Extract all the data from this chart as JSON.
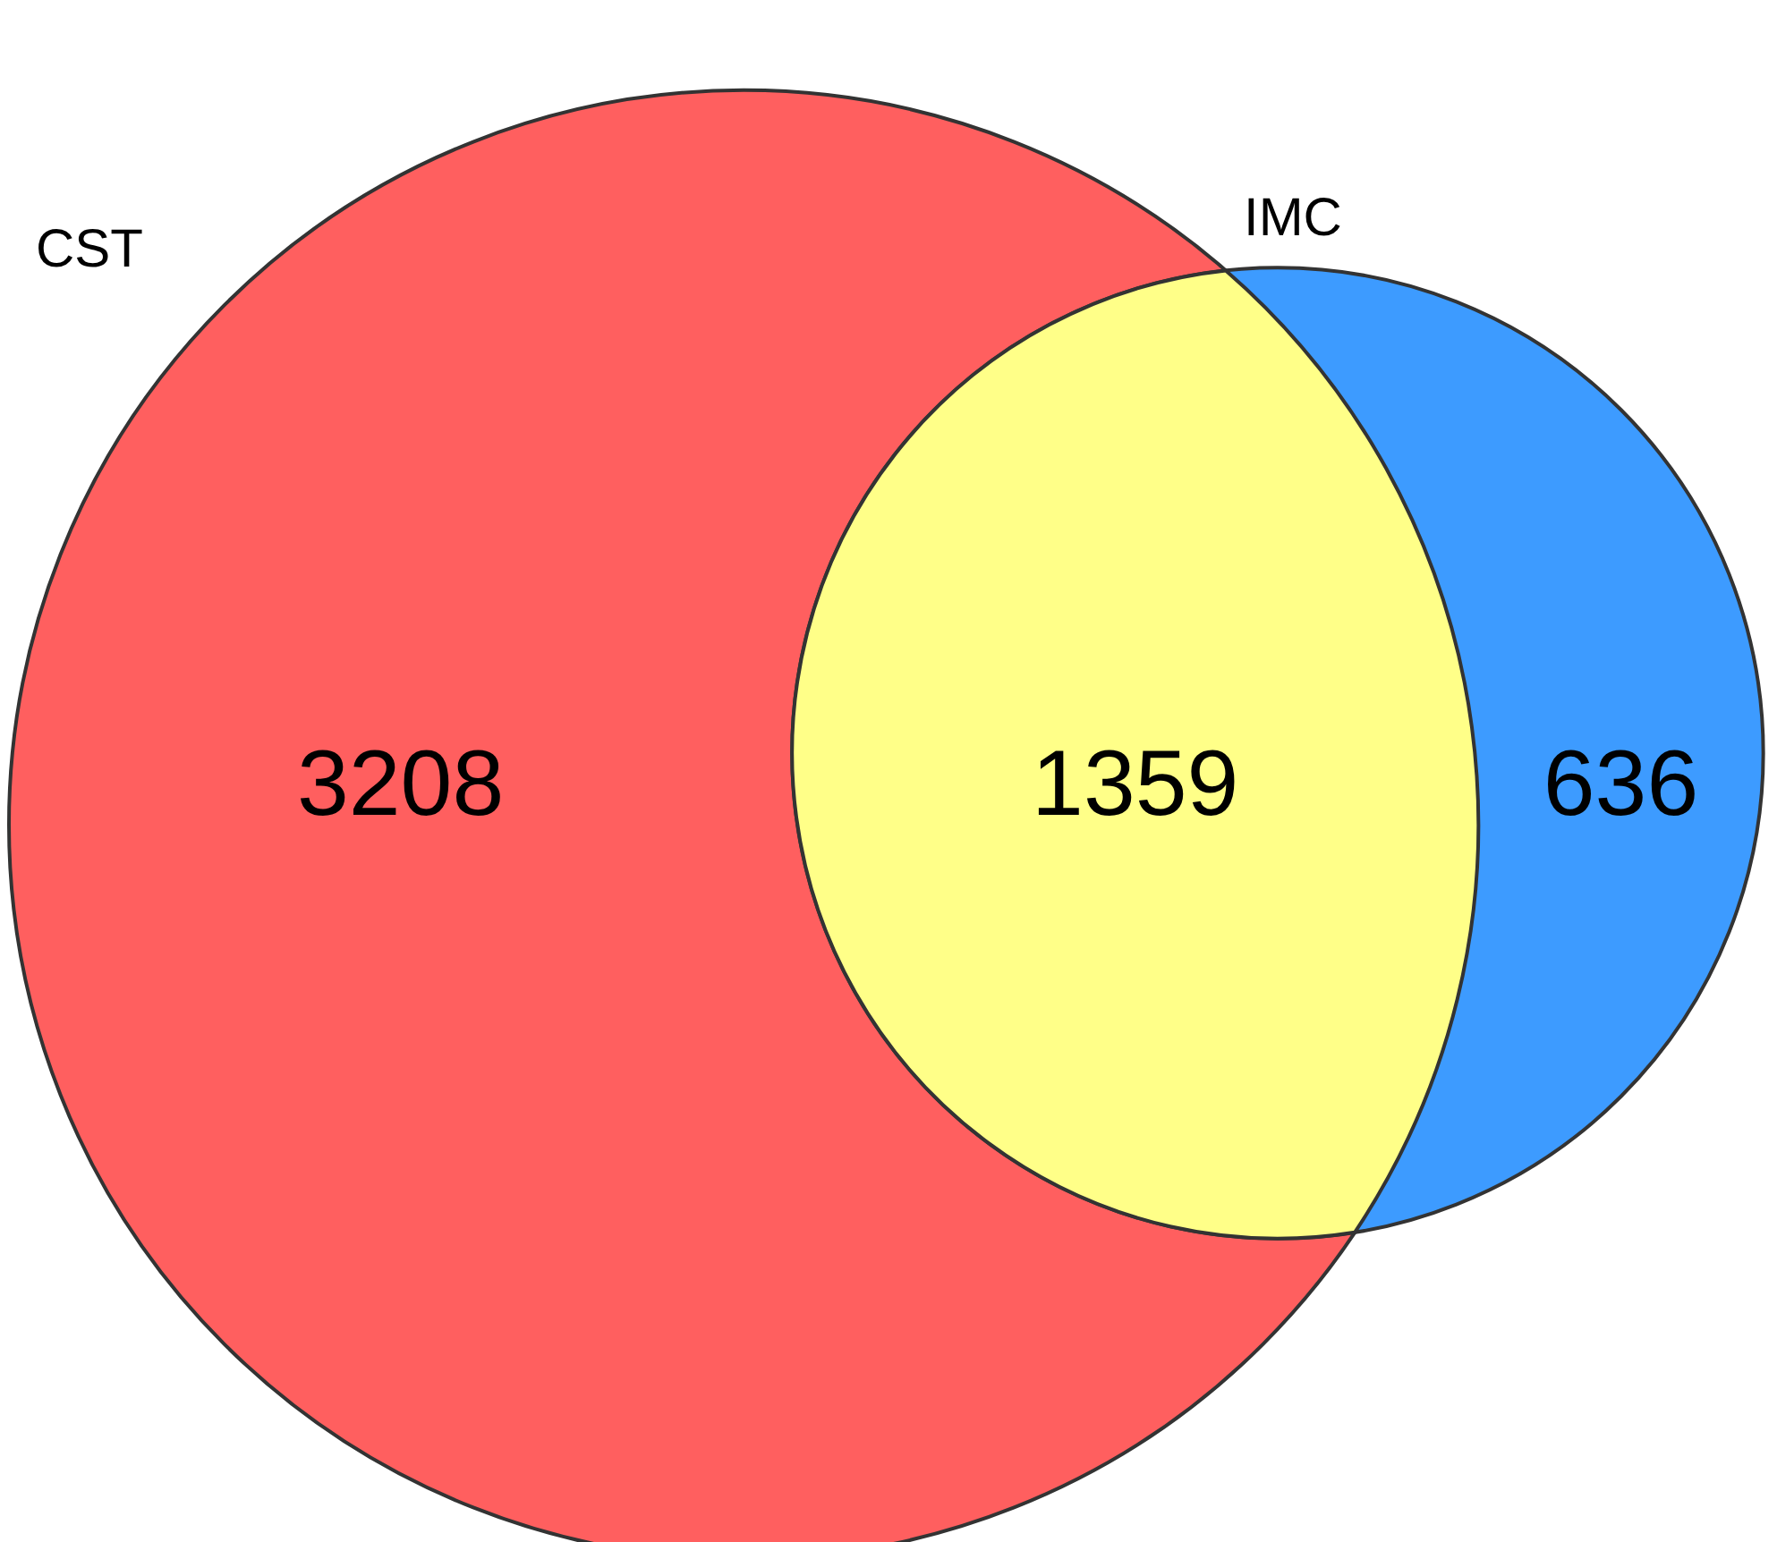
{
  "chart_data": {
    "type": "other",
    "categories": [
      null,
      null,
      null
    ],
    "values": [
      3208,
      1359,
      636
    ],
    "colors": [
      "#ff5f5f",
      "#ffff88",
      "#3d9bff"
    ],
    "data_labels": true,
    "annotations": [
      "CST",
      "IMC"
    ]
  }
}
